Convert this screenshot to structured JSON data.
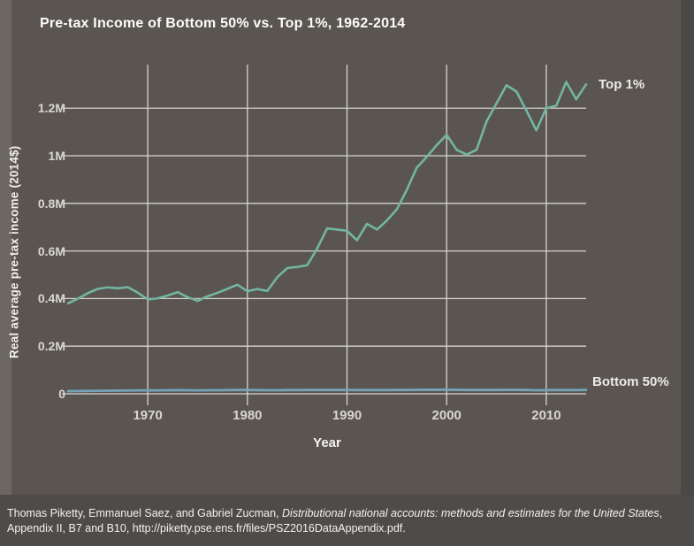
{
  "chart_data": {
    "type": "line",
    "title": "Pre-tax Income of Bottom 50% vs. Top 1%, 1962-2014",
    "xlabel": "Year",
    "ylabel": "Real average pre-tax income (2014$)",
    "grid": true,
    "xlim": [
      1962,
      2014
    ],
    "ylim": [
      0,
      1.383
    ],
    "x": [
      1962,
      1963,
      1964,
      1965,
      1966,
      1967,
      1968,
      1969,
      1970,
      1971,
      1972,
      1973,
      1974,
      1975,
      1976,
      1977,
      1978,
      1979,
      1980,
      1981,
      1982,
      1983,
      1984,
      1985,
      1986,
      1987,
      1988,
      1989,
      1990,
      1991,
      1992,
      1993,
      1994,
      1995,
      1996,
      1997,
      1998,
      1999,
      2000,
      2001,
      2002,
      2003,
      2004,
      2005,
      2006,
      2007,
      2008,
      2009,
      2010,
      2011,
      2012,
      2013,
      2014
    ],
    "units": "millions of 2014 dollars",
    "series": [
      {
        "name": "Top 1%",
        "color": "#73b5a3",
        "values": [
          0.38,
          0.4,
          0.423,
          0.441,
          0.447,
          0.443,
          0.448,
          0.425,
          0.396,
          0.401,
          0.413,
          0.427,
          0.406,
          0.39,
          0.41,
          0.424,
          0.441,
          0.458,
          0.431,
          0.44,
          0.432,
          0.49,
          0.528,
          0.533,
          0.54,
          0.61,
          0.695,
          0.69,
          0.685,
          0.645,
          0.714,
          0.69,
          0.728,
          0.775,
          0.857,
          0.95,
          0.995,
          1.045,
          1.088,
          1.025,
          1.005,
          1.025,
          1.144,
          1.22,
          1.296,
          1.27,
          1.19,
          1.107,
          1.2,
          1.21,
          1.31,
          1.237,
          1.3
        ]
      },
      {
        "name": "Bottom 50%",
        "color": "#74a3b8",
        "values": [
          0.011,
          0.0115,
          0.012,
          0.0125,
          0.013,
          0.0135,
          0.014,
          0.0145,
          0.0145,
          0.0145,
          0.015,
          0.0155,
          0.015,
          0.0145,
          0.015,
          0.015,
          0.0155,
          0.016,
          0.016,
          0.0155,
          0.015,
          0.015,
          0.0155,
          0.0155,
          0.016,
          0.016,
          0.016,
          0.016,
          0.016,
          0.0155,
          0.0155,
          0.0155,
          0.0155,
          0.016,
          0.016,
          0.0165,
          0.017,
          0.017,
          0.0171,
          0.0165,
          0.016,
          0.016,
          0.016,
          0.016,
          0.0165,
          0.0165,
          0.016,
          0.015,
          0.0155,
          0.0155,
          0.0155,
          0.0155,
          0.0162
        ]
      }
    ],
    "y_ticks": [
      {
        "value": 0,
        "label": "0"
      },
      {
        "value": 0.2,
        "label": "0.2M"
      },
      {
        "value": 0.4,
        "label": "0.4M"
      },
      {
        "value": 0.6,
        "label": "0.6M"
      },
      {
        "value": 0.8,
        "label": "0.8M"
      },
      {
        "value": 1.0,
        "label": "1M"
      },
      {
        "value": 1.2,
        "label": "1.2M"
      }
    ],
    "x_ticks": [
      {
        "value": 1970,
        "label": "1970"
      },
      {
        "value": 1980,
        "label": "1980"
      },
      {
        "value": 1990,
        "label": "1990"
      },
      {
        "value": 2000,
        "label": "2000"
      },
      {
        "value": 2010,
        "label": "2010"
      }
    ],
    "legend_position": "labels at right ends of lines"
  },
  "footer": {
    "parts": [
      {
        "text": "Thomas Piketty, Emmanuel Saez, and Gabriel Zucman, ",
        "italic": false
      },
      {
        "text": "Distributional national accounts: methods and estimates for the United States",
        "italic": true
      },
      {
        "text": ", Appendix II, B7 and B10, http://piketty.pse.ens.fr/files/PSZ2016DataAppendix.pdf.",
        "italic": false
      }
    ]
  },
  "colors": {
    "background": "#5a5550",
    "left_edge_strip": "#6c6761",
    "right_edge_strip": "#4c4845",
    "footer_background": "#4f4b48",
    "gridline": "#d7d5d1",
    "tick_text": "#d9d6d2",
    "title_text": "#fdfdfb",
    "top1_line": "#73b5a3",
    "bottom50_line": "#74a3b8"
  }
}
